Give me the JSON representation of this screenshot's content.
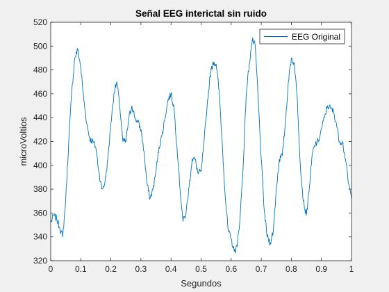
{
  "chart_data": {
    "type": "line",
    "title": "Señal EEG interictal sin ruido",
    "xlabel": "Segundos",
    "ylabel": "microVoltios",
    "xlim": [
      0,
      1
    ],
    "ylim": [
      320,
      520
    ],
    "xticks": [
      0,
      0.1,
      0.2,
      0.3,
      0.4,
      0.5,
      0.6,
      0.7,
      0.8,
      0.9,
      1
    ],
    "xtick_labels": [
      "0",
      "0.1",
      "0.2",
      "0.3",
      "0.4",
      "0.5",
      "0.6",
      "0.7",
      "0.8",
      "0.9",
      "1"
    ],
    "yticks": [
      320,
      340,
      360,
      380,
      400,
      420,
      440,
      460,
      480,
      500,
      520
    ],
    "ytick_labels": [
      "320",
      "340",
      "360",
      "380",
      "400",
      "420",
      "440",
      "460",
      "480",
      "500",
      "520"
    ],
    "grid": false,
    "legend_position": "top-right",
    "series": [
      {
        "name": "EEG Original",
        "color": "#0072bd",
        "x": [
          0,
          0.01,
          0.02,
          0.03,
          0.04,
          0.05,
          0.06,
          0.07,
          0.08,
          0.09,
          0.1,
          0.11,
          0.12,
          0.13,
          0.14,
          0.15,
          0.16,
          0.17,
          0.18,
          0.19,
          0.2,
          0.21,
          0.22,
          0.23,
          0.24,
          0.25,
          0.26,
          0.27,
          0.28,
          0.29,
          0.3,
          0.31,
          0.32,
          0.33,
          0.34,
          0.35,
          0.36,
          0.37,
          0.38,
          0.39,
          0.4,
          0.41,
          0.42,
          0.43,
          0.44,
          0.45,
          0.46,
          0.47,
          0.48,
          0.49,
          0.5,
          0.51,
          0.52,
          0.53,
          0.54,
          0.55,
          0.56,
          0.57,
          0.58,
          0.59,
          0.6,
          0.61,
          0.62,
          0.63,
          0.64,
          0.65,
          0.66,
          0.67,
          0.68,
          0.69,
          0.7,
          0.71,
          0.72,
          0.73,
          0.74,
          0.75,
          0.76,
          0.77,
          0.78,
          0.79,
          0.8,
          0.81,
          0.82,
          0.83,
          0.84,
          0.85,
          0.86,
          0.87,
          0.88,
          0.89,
          0.9,
          0.91,
          0.92,
          0.93,
          0.94,
          0.95,
          0.96,
          0.97,
          0.98,
          0.99,
          1
        ],
        "y": [
          352,
          358,
          355,
          348,
          340,
          372,
          420,
          462,
          490,
          497,
          482,
          455,
          435,
          422,
          420,
          415,
          395,
          380,
          385,
          405,
          435,
          460,
          470,
          448,
          420,
          420,
          440,
          450,
          440,
          436,
          430,
          412,
          385,
          372,
          380,
          395,
          415,
          425,
          440,
          455,
          460,
          448,
          415,
          380,
          353,
          360,
          382,
          405,
          405,
          393,
          395,
          420,
          450,
          475,
          487,
          485,
          462,
          420,
          375,
          345,
          338,
          328,
          332,
          358,
          400,
          460,
          485,
          505,
          500,
          455,
          405,
          362,
          340,
          335,
          345,
          380,
          405,
          408,
          435,
          470,
          490,
          485,
          455,
          400,
          370,
          358,
          382,
          410,
          418,
          420,
          430,
          440,
          450,
          448,
          445,
          435,
          420,
          420,
          405,
          385,
          372
        ]
      }
    ]
  }
}
